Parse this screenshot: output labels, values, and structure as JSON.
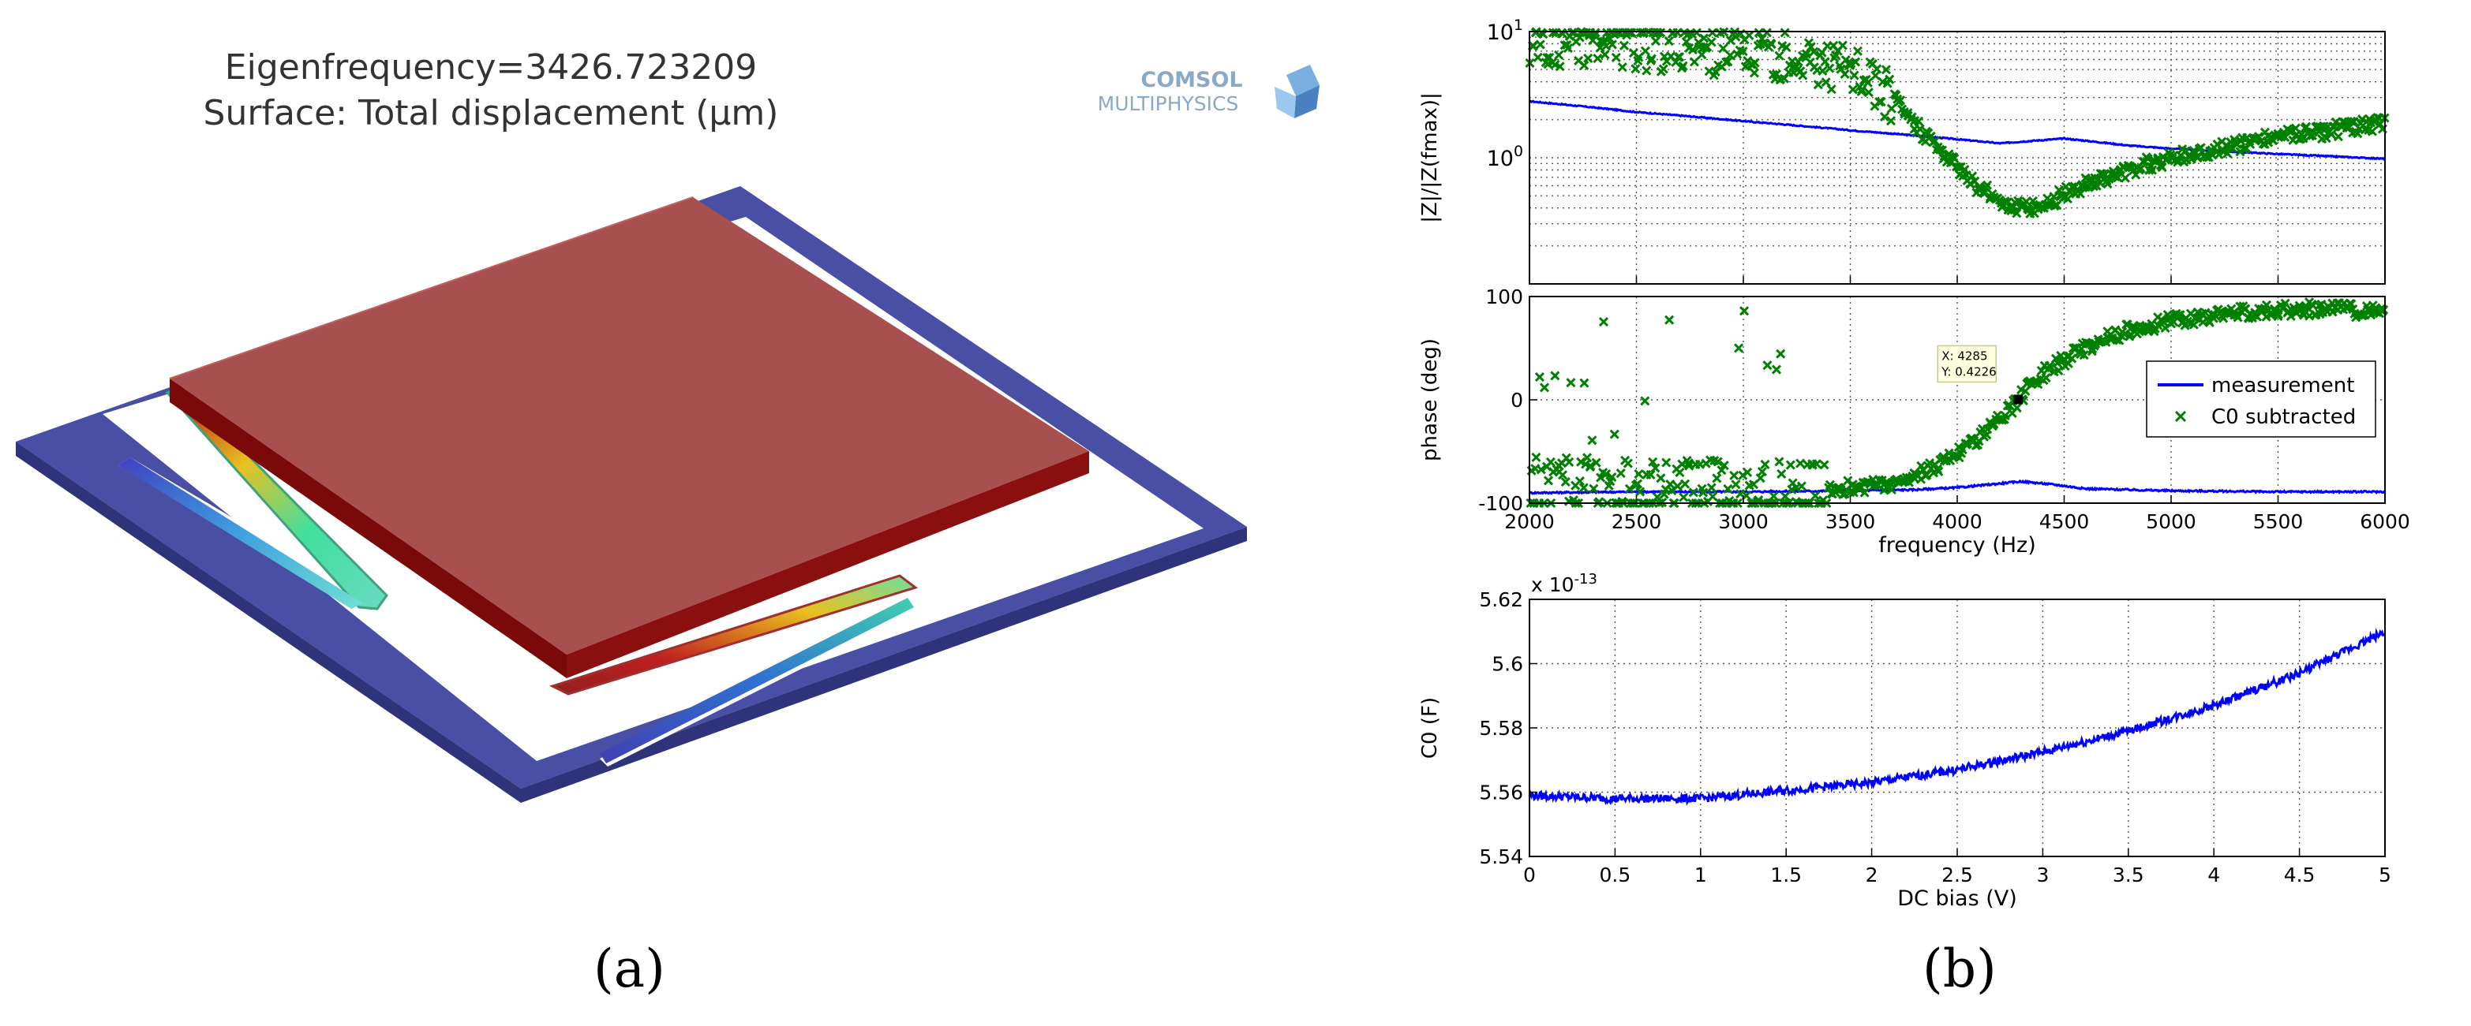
{
  "panel_a": {
    "title_line1": "Eigenfrequency=3426.723209",
    "title_line2": "Surface: Total displacement (μm)",
    "logo_line1": "COMSOL",
    "logo_line2": "MULTIPHYSICS",
    "caption": "(a)",
    "colors": {
      "frame": "#4a4fa6",
      "plate_top": "#a85050",
      "plate_side": "#7a0a0a",
      "logo": "#8aa8c8"
    }
  },
  "panel_b": {
    "caption": "(b)"
  },
  "chart_data": [
    {
      "type": "line",
      "name": "magnitude",
      "ylabel": "|Z|/|Z(fmax)|",
      "xlabel": "",
      "xlim": [
        2000,
        6000
      ],
      "ylim": [
        0.1,
        10
      ],
      "yscale": "log",
      "ytick_labels": [
        "10^0",
        "10^1"
      ],
      "grid": true,
      "series": [
        {
          "name": "measurement",
          "style": "line",
          "color": "#0000ff",
          "x": [
            2000,
            2500,
            3000,
            3500,
            3800,
            4000,
            4200,
            4500,
            4800,
            5000,
            5500,
            6000
          ],
          "y": [
            2.8,
            2.3,
            1.95,
            1.65,
            1.5,
            1.4,
            1.3,
            1.42,
            1.25,
            1.18,
            1.07,
            0.98
          ]
        },
        {
          "name": "C0 subtracted",
          "style": "scatter",
          "color": "#008000",
          "x": [
            2000,
            2250,
            2500,
            2750,
            3000,
            3250,
            3500,
            3650,
            3800,
            3950,
            4100,
            4250,
            4350,
            4450,
            4550,
            4700,
            4850,
            5000,
            5250,
            5500,
            5750,
            6000
          ],
          "y": [
            8.0,
            8.5,
            8.0,
            7.5,
            7.0,
            6.5,
            5.0,
            3.5,
            1.8,
            1.0,
            0.58,
            0.42,
            0.4,
            0.46,
            0.56,
            0.7,
            0.85,
            1.0,
            1.2,
            1.45,
            1.65,
            1.9
          ]
        }
      ]
    },
    {
      "type": "line",
      "name": "phase",
      "ylabel": "phase (deg)",
      "xlabel": "frequency (Hz)",
      "xlim": [
        2000,
        6000
      ],
      "ylim": [
        -100,
        100
      ],
      "xticks": [
        2000,
        2500,
        3000,
        3500,
        4000,
        4500,
        5000,
        5500,
        6000
      ],
      "yticks": [
        -100,
        0,
        100
      ],
      "grid": true,
      "legend": "right",
      "annotation": {
        "x": 4285,
        "y": 0.4226,
        "text1": "X: 4285",
        "text2": "Y: 0.4226"
      },
      "series": [
        {
          "name": "measurement",
          "style": "line",
          "color": "#0000ff",
          "x": [
            2000,
            2500,
            3000,
            3500,
            3800,
            4000,
            4150,
            4300,
            4450,
            4600,
            5000,
            5500,
            6000
          ],
          "y": [
            -90,
            -89,
            -89,
            -88,
            -87,
            -85,
            -82,
            -79,
            -82,
            -86,
            -88,
            -89,
            -89
          ]
        },
        {
          "name": "C0 subtracted",
          "style": "scatter",
          "color": "#008000",
          "x": [
            2000,
            2500,
            3000,
            3300,
            3500,
            3700,
            3900,
            4050,
            4200,
            4285,
            4400,
            4550,
            4700,
            4850,
            5000,
            5250,
            5500,
            5750,
            6000
          ],
          "y": [
            -80,
            -85,
            -88,
            -88,
            -85,
            -80,
            -65,
            -45,
            -20,
            0.4226,
            25,
            45,
            60,
            70,
            77,
            83,
            87,
            88,
            85
          ]
        }
      ]
    },
    {
      "type": "line",
      "name": "capacitance",
      "ylabel": "C0 (F)",
      "xlabel": "DC bias (V)",
      "multiplier": "x 10^-13",
      "xlim": [
        0,
        5
      ],
      "ylim": [
        5.54,
        5.62
      ],
      "xticks": [
        0,
        0.5,
        1,
        1.5,
        2,
        2.5,
        3,
        3.5,
        4,
        4.5,
        5
      ],
      "yticks": [
        5.54,
        5.56,
        5.58,
        5.6,
        5.62
      ],
      "grid": true,
      "series": [
        {
          "name": "",
          "style": "line",
          "color": "#0000ff",
          "x": [
            0,
            0.5,
            1,
            1.5,
            2,
            2.5,
            3,
            3.5,
            4,
            4.5,
            5
          ],
          "y": [
            5.559,
            5.558,
            5.558,
            5.5605,
            5.563,
            5.567,
            5.5725,
            5.579,
            5.587,
            5.597,
            5.61
          ]
        }
      ]
    }
  ]
}
